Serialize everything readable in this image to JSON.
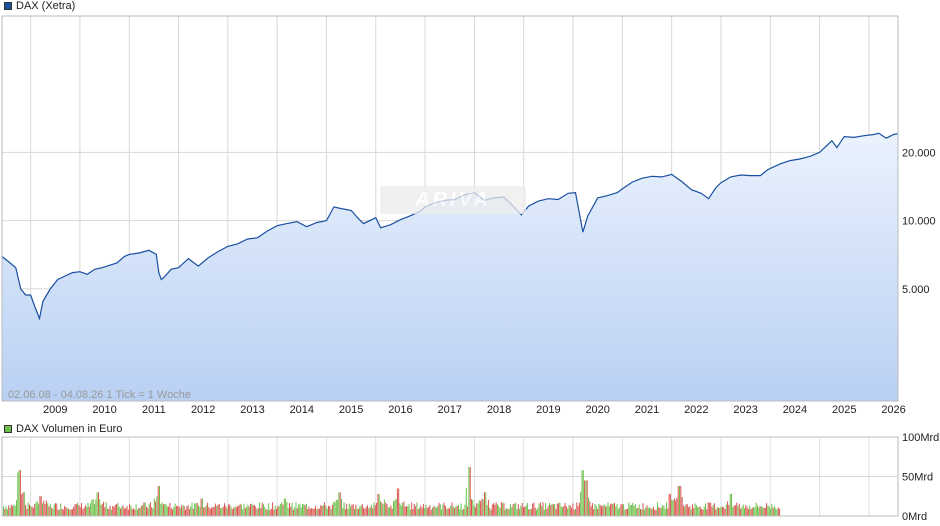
{
  "legend": {
    "price": {
      "label": "DAX (Xetra)",
      "color": "#1a4fa0"
    },
    "volume": {
      "label": "DAX Volumen in Euro",
      "color": "#6cc04a"
    }
  },
  "meta": {
    "range_text": "02.06.08 - 04.08.26    1 Tick = 1 Woche"
  },
  "watermark": {
    "text": "ARIVA"
  },
  "chart_data": [
    {
      "type": "area",
      "series": [
        {
          "name": "DAX (Xetra)",
          "x": [
            2008.42,
            2008.55,
            2008.7,
            2008.8,
            2008.9,
            2009.0,
            2009.1,
            2009.18,
            2009.25,
            2009.4,
            2009.55,
            2009.7,
            2009.85,
            2010.0,
            2010.15,
            2010.3,
            2010.45,
            2010.6,
            2010.75,
            2010.9,
            2011.0,
            2011.2,
            2011.4,
            2011.55,
            2011.6,
            2011.65,
            2011.7,
            2011.85,
            2012.0,
            2012.2,
            2012.4,
            2012.6,
            2012.8,
            2013.0,
            2013.2,
            2013.4,
            2013.6,
            2013.8,
            2014.0,
            2014.2,
            2014.4,
            2014.6,
            2014.8,
            2015.0,
            2015.15,
            2015.3,
            2015.5,
            2015.65,
            2015.75,
            2016.0,
            2016.1,
            2016.3,
            2016.5,
            2016.7,
            2016.9,
            2017.0,
            2017.2,
            2017.4,
            2017.6,
            2017.8,
            2018.0,
            2018.2,
            2018.4,
            2018.6,
            2018.8,
            2018.95,
            2019.1,
            2019.3,
            2019.5,
            2019.7,
            2019.9,
            2020.05,
            2020.12,
            2020.2,
            2020.3,
            2020.5,
            2020.7,
            2020.9,
            2021.0,
            2021.2,
            2021.4,
            2021.6,
            2021.8,
            2022.0,
            2022.2,
            2022.4,
            2022.6,
            2022.75,
            2022.9,
            2023.0,
            2023.2,
            2023.4,
            2023.6,
            2023.8,
            2023.95,
            2024.2,
            2024.4,
            2024.6,
            2024.8,
            2025.0,
            2025.15,
            2025.25,
            2025.35,
            2025.5,
            2025.7,
            2025.9,
            2026.1,
            2026.2,
            2026.35,
            2026.5,
            2026.59
          ],
          "y": [
            6950,
            6600,
            6200,
            5000,
            4700,
            4700,
            4100,
            3700,
            4400,
            5000,
            5500,
            5700,
            5900,
            5950,
            5800,
            6100,
            6200,
            6350,
            6500,
            6950,
            7100,
            7200,
            7400,
            7100,
            5900,
            5500,
            5600,
            6100,
            6200,
            6800,
            6300,
            6850,
            7300,
            7700,
            7900,
            8300,
            8400,
            9000,
            9500,
            9700,
            9900,
            9400,
            9800,
            10000,
            11500,
            11300,
            11100,
            10200,
            9700,
            10300,
            9300,
            9600,
            10100,
            10500,
            11000,
            11500,
            12000,
            12300,
            12400,
            13000,
            13300,
            12300,
            12600,
            12700,
            11500,
            10600,
            11600,
            12200,
            12500,
            12400,
            13200,
            13300,
            11000,
            8900,
            10500,
            12600,
            12900,
            13300,
            13800,
            14800,
            15400,
            15700,
            15600,
            16000,
            14900,
            13700,
            13200,
            12500,
            14000,
            14700,
            15600,
            15900,
            15800,
            15800,
            16800,
            17800,
            18400,
            18700,
            19200,
            20000,
            21500,
            22500,
            21000,
            23500,
            23300,
            23700,
            24000,
            24300,
            23100,
            24000,
            24200
          ]
        }
      ],
      "xlim": [
        2008.42,
        2026.59
      ],
      "ylim": [
        1600,
        80000
      ],
      "yscale": "log",
      "yticks": [
        5000,
        10000,
        20000
      ],
      "ytick_labels": [
        "5.000",
        "10.000",
        "20.000"
      ],
      "xtick_labels": [
        "2009",
        "2010",
        "2011",
        "2012",
        "2013",
        "2014",
        "2015",
        "2016",
        "2017",
        "2018",
        "2019",
        "2020",
        "2021",
        "2022",
        "2023",
        "2024",
        "2025",
        "2026"
      ],
      "grid": true,
      "legend_position": "top-left"
    },
    {
      "type": "bar",
      "series": [
        {
          "name": "DAX Volumen in Euro"
        }
      ],
      "ylim": [
        0,
        100
      ],
      "ytick_labels": [
        "100Mrd",
        "50Mrd",
        "0Mrd"
      ],
      "baseline_mrd": 14,
      "spikes": [
        {
          "x": 2008.75,
          "value": 55
        },
        {
          "x": 2008.78,
          "value": 58
        },
        {
          "x": 2008.85,
          "value": 30
        },
        {
          "x": 2009.2,
          "value": 25
        },
        {
          "x": 2010.35,
          "value": 30
        },
        {
          "x": 2011.6,
          "value": 38
        },
        {
          "x": 2012.45,
          "value": 22
        },
        {
          "x": 2014.15,
          "value": 22
        },
        {
          "x": 2015.25,
          "value": 30
        },
        {
          "x": 2016.05,
          "value": 28
        },
        {
          "x": 2016.45,
          "value": 35
        },
        {
          "x": 2017.9,
          "value": 62
        },
        {
          "x": 2018.2,
          "value": 30
        },
        {
          "x": 2020.2,
          "value": 58
        },
        {
          "x": 2020.25,
          "value": 45
        },
        {
          "x": 2021.95,
          "value": 28
        },
        {
          "x": 2022.15,
          "value": 38
        },
        {
          "x": 2023.2,
          "value": 28
        }
      ],
      "colors": {
        "up": "#6cc04a",
        "down": "#d9534f"
      },
      "data_end_x": 2024.2,
      "grid": true,
      "legend_position": "top-left"
    }
  ]
}
